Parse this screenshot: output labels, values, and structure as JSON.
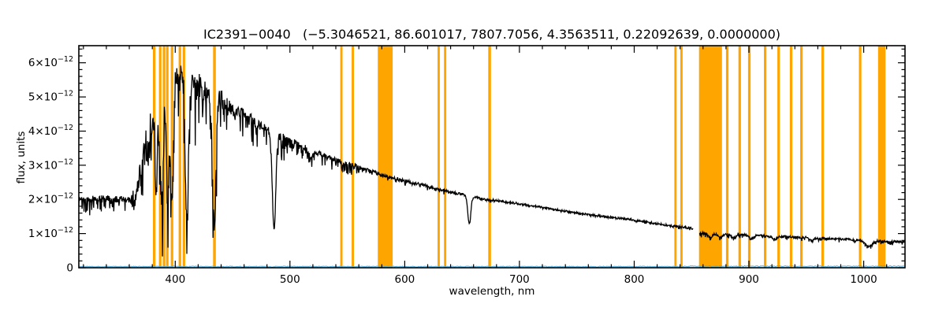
{
  "chart_data": {
    "type": "line",
    "title": "IC2391−0040   (−5.3046521, 86.601017, 7807.7056, 4.3563511, 0.22092639, 0.0000000)",
    "xlabel": "wavelength, nm",
    "ylabel": "flux, units",
    "xlim": [
      316,
      1036
    ],
    "ylim_e12": [
      0,
      6.5
    ],
    "y_unit_scale": "1e-12",
    "xticks": [
      400,
      500,
      600,
      700,
      800,
      900,
      1000
    ],
    "x_minor_step": 20,
    "y_minor_step": 0.2,
    "yticks": [
      {
        "v": 0,
        "text": "0"
      },
      {
        "v": 1,
        "base": "1×10",
        "sup": "−12"
      },
      {
        "v": 2,
        "base": "2×10",
        "sup": "−12"
      },
      {
        "v": 3,
        "base": "3×10",
        "sup": "−12"
      },
      {
        "v": 4,
        "base": "4×10",
        "sup": "−12"
      },
      {
        "v": 5,
        "base": "5×10",
        "sup": "−12"
      },
      {
        "v": 6,
        "base": "6×10",
        "sup": "−12"
      }
    ],
    "grid": false,
    "legend": "none",
    "colors": {
      "spectrum": "#000000",
      "error": "#4fa8d8",
      "band": "#ffa500",
      "axis": "#000000",
      "background": "#ffffff"
    },
    "series": [
      {
        "name": "stellar-spectrum",
        "color": "#000000",
        "role": "flux"
      },
      {
        "name": "error-spectrum",
        "color": "#4fa8d8",
        "role": "uncertainty"
      }
    ],
    "continuum_e12": [
      [
        316,
        2.05
      ],
      [
        322,
        2.0
      ],
      [
        330,
        2.02
      ],
      [
        338,
        2.05
      ],
      [
        346,
        2.0
      ],
      [
        354,
        2.0
      ],
      [
        360,
        2.0
      ],
      [
        364,
        2.05
      ],
      [
        366,
        2.3
      ],
      [
        370,
        2.9
      ],
      [
        374,
        3.5
      ],
      [
        378,
        4.15
      ],
      [
        382,
        4.6
      ],
      [
        386,
        4.9
      ],
      [
        390,
        5.1
      ],
      [
        394,
        5.25
      ],
      [
        398,
        5.45
      ],
      [
        402,
        5.6
      ],
      [
        406,
        5.7
      ],
      [
        410,
        5.65
      ],
      [
        414,
        5.55
      ],
      [
        418,
        5.45
      ],
      [
        424,
        5.3
      ],
      [
        430,
        5.15
      ],
      [
        436,
        5.0
      ],
      [
        444,
        4.85
      ],
      [
        452,
        4.65
      ],
      [
        460,
        4.5
      ],
      [
        470,
        4.3
      ],
      [
        480,
        4.05
      ],
      [
        490,
        3.9
      ],
      [
        500,
        3.7
      ],
      [
        510,
        3.55
      ],
      [
        520,
        3.4
      ],
      [
        530,
        3.3
      ],
      [
        540,
        3.15
      ],
      [
        550,
        3.05
      ],
      [
        560,
        2.95
      ],
      [
        570,
        2.85
      ],
      [
        580,
        2.72
      ],
      [
        590,
        2.62
      ],
      [
        600,
        2.55
      ],
      [
        610,
        2.47
      ],
      [
        620,
        2.4
      ],
      [
        630,
        2.3
      ],
      [
        640,
        2.22
      ],
      [
        650,
        2.15
      ],
      [
        660,
        2.08
      ],
      [
        670,
        2.0
      ],
      [
        680,
        1.97
      ],
      [
        690,
        1.92
      ],
      [
        700,
        1.87
      ],
      [
        710,
        1.82
      ],
      [
        720,
        1.77
      ],
      [
        730,
        1.71
      ],
      [
        740,
        1.66
      ],
      [
        750,
        1.6
      ],
      [
        760,
        1.56
      ],
      [
        770,
        1.52
      ],
      [
        780,
        1.48
      ],
      [
        790,
        1.44
      ],
      [
        800,
        1.4
      ],
      [
        810,
        1.34
      ],
      [
        820,
        1.29
      ],
      [
        830,
        1.24
      ],
      [
        840,
        1.2
      ],
      [
        851,
        1.16
      ],
      [
        856,
        1.02
      ],
      [
        866,
        1.0
      ],
      [
        880,
        0.99
      ],
      [
        900,
        0.96
      ],
      [
        920,
        0.93
      ],
      [
        940,
        0.9
      ],
      [
        960,
        0.87
      ],
      [
        980,
        0.84
      ],
      [
        1000,
        0.81
      ],
      [
        1015,
        0.78
      ],
      [
        1036,
        0.76
      ]
    ],
    "absorption_lines": [
      {
        "center": 383.5,
        "depth": 0.5,
        "sigma": 0.9
      },
      {
        "center": 386.7,
        "depth": 0.45,
        "sigma": 0.8
      },
      {
        "center": 388.9,
        "depth": 0.55,
        "sigma": 0.9
      },
      {
        "center": 393.4,
        "depth": 0.62,
        "sigma": 1.1
      },
      {
        "center": 397.0,
        "depth": 0.66,
        "sigma": 1.2
      },
      {
        "center": 410.2,
        "depth": 0.74,
        "sigma": 1.4
      },
      {
        "center": 434.0,
        "depth": 0.76,
        "sigma": 1.5
      },
      {
        "center": 486.1,
        "depth": 0.72,
        "sigma": 1.5
      },
      {
        "center": 518.0,
        "depth": 0.05,
        "sigma": 1.5
      },
      {
        "center": 656.3,
        "depth": 0.4,
        "sigma": 1.3
      },
      {
        "center": 854.2,
        "depth": 0.12,
        "sigma": 1.5
      },
      {
        "center": 866.2,
        "depth": 0.12,
        "sigma": 1.5
      },
      {
        "center": 875.0,
        "depth": 0.1,
        "sigma": 1.8
      },
      {
        "center": 886.3,
        "depth": 0.11,
        "sigma": 1.8
      },
      {
        "center": 901.5,
        "depth": 0.11,
        "sigma": 1.8
      },
      {
        "center": 923.0,
        "depth": 0.1,
        "sigma": 1.8
      },
      {
        "center": 955.0,
        "depth": 0.08,
        "sigma": 1.8
      },
      {
        "center": 1004.0,
        "depth": 0.22,
        "sigma": 3.0
      }
    ],
    "noise_segments_e12": [
      [
        316,
        362,
        0.1
      ],
      [
        362,
        372,
        0.35
      ],
      [
        372,
        385,
        0.45
      ],
      [
        385,
        425,
        0.4
      ],
      [
        425,
        445,
        0.28
      ],
      [
        445,
        475,
        0.18
      ],
      [
        475,
        515,
        0.12
      ],
      [
        515,
        560,
        0.07
      ],
      [
        560,
        620,
        0.045
      ],
      [
        620,
        700,
        0.035
      ],
      [
        700,
        800,
        0.028
      ],
      [
        800,
        851,
        0.03
      ],
      [
        851,
        1036,
        0.032
      ]
    ],
    "spike_segments_e12": [
      [
        316,
        364,
        0.5
      ],
      [
        364,
        380,
        1.6
      ],
      [
        380,
        442,
        1.8
      ],
      [
        442,
        500,
        0.8
      ],
      [
        500,
        560,
        0.35
      ],
      [
        560,
        640,
        0.12
      ],
      [
        640,
        851,
        0.05
      ],
      [
        851,
        1036,
        0.1
      ]
    ],
    "gaps_nm": [
      [
        851.5,
        856.5
      ]
    ],
    "masked_bands_nm": [
      [
        380.6,
        382.8
      ],
      [
        385.8,
        388.0
      ],
      [
        389.2,
        391.4
      ],
      [
        392.0,
        394.2
      ],
      [
        396.1,
        398.3
      ],
      [
        403.0,
        405.2
      ],
      [
        406.5,
        408.7
      ],
      [
        433.0,
        435.4
      ],
      [
        543.8,
        545.8
      ],
      [
        553.8,
        555.8
      ],
      [
        576.5,
        589.5
      ],
      [
        628.6,
        630.6
      ],
      [
        634.2,
        636.2
      ],
      [
        672.8,
        675.2
      ],
      [
        835.0,
        837.0
      ],
      [
        840.2,
        842.2
      ],
      [
        856.5,
        876.5
      ],
      [
        880.0,
        882.2
      ],
      [
        890.8,
        893.0
      ],
      [
        899.2,
        901.4
      ],
      [
        913.0,
        915.2
      ],
      [
        924.8,
        927.0
      ],
      [
        935.6,
        937.8
      ],
      [
        944.6,
        946.8
      ],
      [
        963.2,
        965.4
      ],
      [
        995.8,
        998.0
      ],
      [
        1012.5,
        1019.0
      ]
    ],
    "error_base_e12": 0.035
  }
}
